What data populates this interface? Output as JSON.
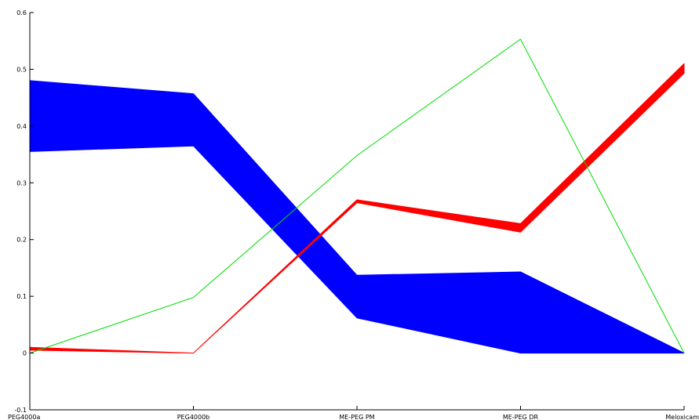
{
  "chart_data": {
    "type": "line",
    "title": "",
    "xlabel": "",
    "ylabel": "",
    "categories": [
      "PEG4000a",
      "PEG4000b",
      "ME-PEG PM",
      "ME-PEG DR",
      "Meloxicam"
    ],
    "ylim": [
      -0.1,
      0.6
    ],
    "yticks": [
      -0.1,
      0,
      0.1,
      0.2,
      0.3,
      0.4,
      0.5,
      0.6
    ],
    "ytick_labels": [
      "-0.1",
      "0",
      "0.1",
      "0.2",
      "0.3",
      "0.4",
      "0.5",
      "0.6"
    ],
    "grid": false,
    "legend": "none",
    "bands": [
      {
        "color": "#0000ff",
        "lower": [
          0.355,
          0.365,
          0.062,
          0.0,
          0.0
        ],
        "upper": [
          0.48,
          0.457,
          0.137,
          0.143,
          0.0
        ]
      },
      {
        "color": "#ff0000",
        "lower": [
          0.005,
          0.0,
          0.265,
          0.213,
          0.493
        ],
        "upper": [
          0.01,
          0.0,
          0.27,
          0.228,
          0.51
        ]
      }
    ],
    "series": [
      {
        "color": "#00dd00",
        "values": [
          0.0,
          0.098,
          0.348,
          0.553,
          0.0
        ]
      }
    ]
  }
}
